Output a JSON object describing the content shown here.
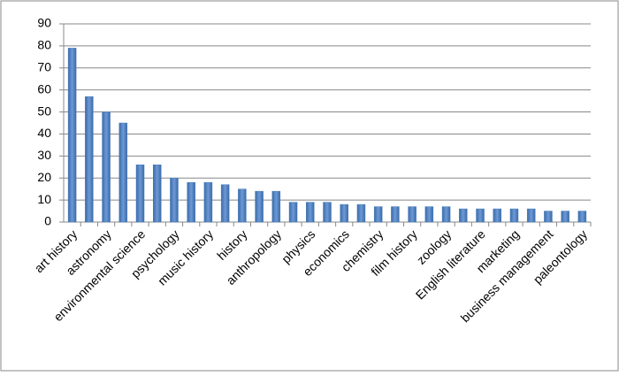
{
  "chart_data": {
    "type": "bar",
    "categories": [
      "art history",
      null,
      "astronomy",
      null,
      "environmental science",
      null,
      "psychology",
      null,
      "music history",
      null,
      "history",
      null,
      "anthropology",
      null,
      "physics",
      null,
      "economics",
      null,
      "chemistry",
      null,
      "film history",
      null,
      "zoology",
      null,
      "English literature",
      null,
      "marketing",
      null,
      "business management",
      null,
      "paleontology"
    ],
    "values": [
      79,
      57,
      50,
      45,
      26,
      26,
      20,
      18,
      18,
      17,
      15,
      14,
      14,
      9,
      9,
      9,
      8,
      8,
      7,
      7,
      7,
      7,
      7,
      6,
      6,
      6,
      6,
      6,
      5,
      5,
      5
    ],
    "color": "#4a7ebb",
    "ylim": [
      0,
      90
    ],
    "yticks": [
      0,
      10,
      20,
      30,
      40,
      50,
      60,
      70,
      80,
      90
    ],
    "grid": true
  }
}
